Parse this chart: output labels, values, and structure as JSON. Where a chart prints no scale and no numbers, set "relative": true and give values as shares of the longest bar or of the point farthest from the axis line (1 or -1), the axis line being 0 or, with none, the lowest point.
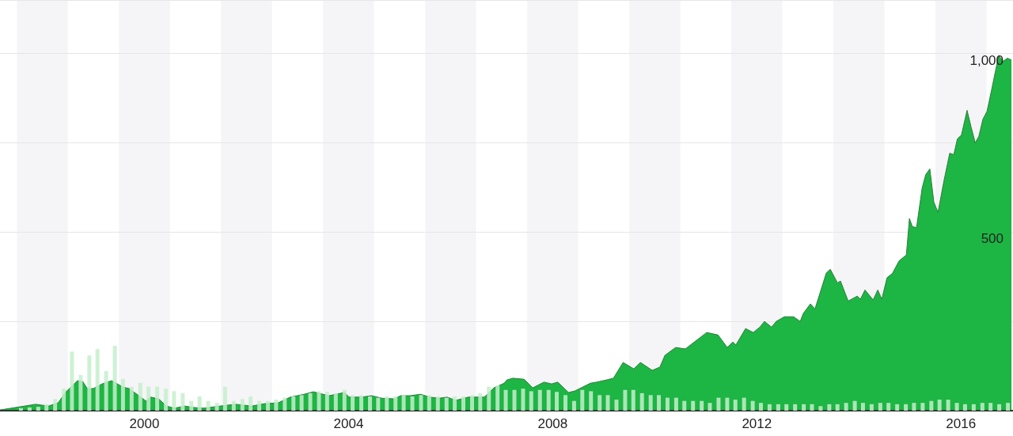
{
  "chart_data": [
    {
      "type": "area",
      "xlim": [
        1997.67,
        2017.52
      ],
      "ylim": [
        0,
        1150
      ],
      "xticks": [
        {
          "value": 2000.5,
          "label": "2000"
        },
        {
          "value": 2004.5,
          "label": "2004"
        },
        {
          "value": 2008.5,
          "label": "2008"
        },
        {
          "value": 2012.5,
          "label": "2012"
        },
        {
          "value": 2016.5,
          "label": "2016"
        }
      ],
      "yticks": [
        {
          "value": 250,
          "label": null
        },
        500,
        {
          "value": 750,
          "label": null
        },
        {
          "value": 1000,
          "label": "1,000"
        }
      ],
      "grid": "y",
      "marker": "none",
      "bands": [
        {
          "axis": "x",
          "from": 1998,
          "to": 1999,
          "color": "#f5f5f7"
        },
        {
          "axis": "x",
          "from": 2000,
          "to": 2001,
          "color": "#f5f5f7"
        },
        {
          "axis": "x",
          "from": 2002,
          "to": 2003,
          "color": "#f5f5f7"
        },
        {
          "axis": "x",
          "from": 2004,
          "to": 2005,
          "color": "#f5f5f7"
        },
        {
          "axis": "x",
          "from": 2006,
          "to": 2007,
          "color": "#f5f5f7"
        },
        {
          "axis": "x",
          "from": 2008,
          "to": 2009,
          "color": "#f5f5f7"
        },
        {
          "axis": "x",
          "from": 2010,
          "to": 2011,
          "color": "#f5f5f7"
        },
        {
          "axis": "x",
          "from": 2012,
          "to": 2013,
          "color": "#f5f5f7"
        },
        {
          "axis": "x",
          "from": 2014,
          "to": 2015,
          "color": "#f5f5f7"
        },
        {
          "axis": "x",
          "from": 2016,
          "to": 2017,
          "color": "#f5f5f7"
        }
      ],
      "series": [
        {
          "color": "#1db543",
          "x": [
            1997.67,
            1998.37,
            1998.62,
            1998.81,
            1998.95,
            1999.19,
            1999.29,
            1999.38,
            1999.5,
            1999.67,
            1999.86,
            2000.08,
            2000.2,
            2000.39,
            2000.53,
            2000.62,
            2000.78,
            2000.93,
            2001.09,
            2001.29,
            2001.47,
            2001.66,
            2001.98,
            2002.29,
            2002.6,
            2002.87,
            2003.12,
            2003.36,
            2003.63,
            2003.81,
            2004,
            2004.12,
            2004.42,
            2004.51,
            2004.76,
            2004.95,
            2005.15,
            2005.4,
            2005.52,
            2005.71,
            2005.91,
            2006.09,
            2006.28,
            2006.43,
            2006.6,
            2006.85,
            2007.16,
            2007.35,
            2007.55,
            2007.6,
            2007.72,
            2007.94,
            2008.11,
            2008.33,
            2008.48,
            2008.6,
            2008.81,
            2008.93,
            2009.24,
            2009.36,
            2009.55,
            2009.69,
            2009.88,
            2010.09,
            2010.22,
            2010.45,
            2010.6,
            2010.7,
            2010.91,
            2011.1,
            2011.3,
            2011.52,
            2011.74,
            2011.92,
            2012.03,
            2012.09,
            2012.28,
            2012.43,
            2012.56,
            2012.65,
            2012.79,
            2012.88,
            2013.04,
            2013.22,
            2013.35,
            2013.41,
            2013.55,
            2013.64,
            2013.86,
            2013.94,
            2014.08,
            2014.14,
            2014.29,
            2014.47,
            2014.53,
            2014.62,
            2014.78,
            2014.87,
            2014.95,
            2015.05,
            2015.16,
            2015.29,
            2015.43,
            2015.49,
            2015.55,
            2015.63,
            2015.74,
            2015.81,
            2015.89,
            2015.97,
            2016.05,
            2016.17,
            2016.28,
            2016.36,
            2016.43,
            2016.51,
            2016.62,
            2016.7,
            2016.78,
            2016.85,
            2016.93,
            2017.01,
            2017.1,
            2017.24,
            2017.32,
            2017.41,
            2017.49
          ],
          "values": [
            2,
            18,
            13,
            22,
            51,
            84,
            82,
            62,
            62,
            75,
            84,
            66,
            62,
            42,
            27,
            38,
            33,
            13,
            7,
            13,
            9,
            7,
            13,
            18,
            13,
            20,
            22,
            38,
            46,
            53,
            46,
            42,
            51,
            38,
            38,
            42,
            35,
            33,
            42,
            42,
            46,
            38,
            35,
            38,
            29,
            38,
            38,
            64,
            77,
            86,
            91,
            88,
            64,
            80,
            75,
            80,
            51,
            55,
            77,
            80,
            86,
            91,
            135,
            117,
            135,
            113,
            122,
            155,
            177,
            173,
            195,
            219,
            212,
            177,
            192,
            184,
            230,
            219,
            234,
            250,
            234,
            250,
            263,
            263,
            250,
            272,
            299,
            285,
            385,
            396,
            358,
            363,
            307,
            321,
            312,
            338,
            310,
            338,
            312,
            372,
            385,
            420,
            436,
            538,
            515,
            513,
            624,
            661,
            677,
            584,
            555,
            646,
            721,
            717,
            761,
            772,
            841,
            794,
            750,
            768,
            816,
            838,
            898,
            995,
            978,
            987,
            982
          ]
        }
      ]
    },
    {
      "type": "bar",
      "relative": true,
      "xlim": [
        1997.67,
        2017.52
      ],
      "series": [
        {
          "color": "#c6eecd",
          "x": [
            1998.08,
            1998.25,
            1998.42,
            1998.58,
            1998.75,
            1998.92,
            1999.08,
            1999.25,
            1999.42,
            1999.58,
            1999.75,
            1999.92,
            2000.08,
            2000.25,
            2000.42,
            2000.58,
            2000.75,
            2000.92,
            2001.08,
            2001.25,
            2001.42,
            2001.58,
            2001.75,
            2001.92,
            2002.08,
            2002.25,
            2002.42,
            2002.58,
            2002.75,
            2002.92,
            2003.08,
            2003.25,
            2003.42,
            2003.58,
            2003.75,
            2003.92,
            2004.08,
            2004.25,
            2004.42,
            2004.58,
            2004.75,
            2004.92,
            2005.08,
            2005.25,
            2005.42,
            2005.58,
            2005.75,
            2005.92,
            2006.08,
            2006.25,
            2006.42,
            2006.58,
            2006.75,
            2006.92,
            2007.08,
            2007.25,
            2007.42,
            2007.58,
            2007.75,
            2007.92,
            2008.08,
            2008.25,
            2008.42,
            2008.58,
            2008.75,
            2008.92,
            2009.08,
            2009.25,
            2009.42,
            2009.58,
            2009.75,
            2009.92,
            2010.08,
            2010.25,
            2010.42,
            2010.58,
            2010.75,
            2010.92,
            2011.08,
            2011.25,
            2011.42,
            2011.58,
            2011.75,
            2011.92,
            2012.08,
            2012.25,
            2012.42,
            2012.58,
            2012.75,
            2012.92,
            2013.08,
            2013.25,
            2013.42,
            2013.58,
            2013.75,
            2013.92,
            2014.08,
            2014.25,
            2014.42,
            2014.58,
            2014.75,
            2014.92,
            2015.08,
            2015.25,
            2015.42,
            2015.58,
            2015.75,
            2015.92,
            2016.08,
            2016.25,
            2016.42,
            2016.58,
            2016.75,
            2016.92,
            2017.08,
            2017.25,
            2017.42
          ],
          "values": [
            0.04,
            0.05,
            0.06,
            0.1,
            0.18,
            0.34,
            0.91,
            0.55,
            0.85,
            0.95,
            0.61,
            1,
            0.49,
            0.37,
            0.43,
            0.37,
            0.37,
            0.34,
            0.3,
            0.27,
            0.15,
            0.22,
            0.15,
            0.12,
            0.37,
            0.15,
            0.18,
            0.22,
            0.15,
            0.15,
            0.17,
            0.2,
            0.22,
            0.24,
            0.27,
            0.3,
            0.29,
            0.27,
            0.32,
            0.24,
            0.24,
            0.22,
            0.2,
            0.22,
            0.22,
            0.24,
            0.22,
            0.24,
            0.24,
            0.22,
            0.2,
            0.22,
            0.22,
            0.24,
            0.27,
            0.37,
            0.39,
            0.32,
            0.32,
            0.34,
            0.3,
            0.32,
            0.32,
            0.29,
            0.24,
            0.15,
            0.32,
            0.3,
            0.24,
            0.24,
            0.17,
            0.32,
            0.32,
            0.27,
            0.24,
            0.24,
            0.2,
            0.2,
            0.15,
            0.15,
            0.15,
            0.12,
            0.2,
            0.2,
            0.17,
            0.2,
            0.15,
            0.12,
            0.1,
            0.1,
            0.1,
            0.1,
            0.1,
            0.1,
            0.07,
            0.1,
            0.1,
            0.12,
            0.15,
            0.12,
            0.1,
            0.12,
            0.12,
            0.1,
            0.1,
            0.12,
            0.12,
            0.15,
            0.17,
            0.17,
            0.12,
            0.1,
            0.1,
            0.12,
            0.12,
            0.1,
            0.12
          ]
        }
      ]
    }
  ]
}
